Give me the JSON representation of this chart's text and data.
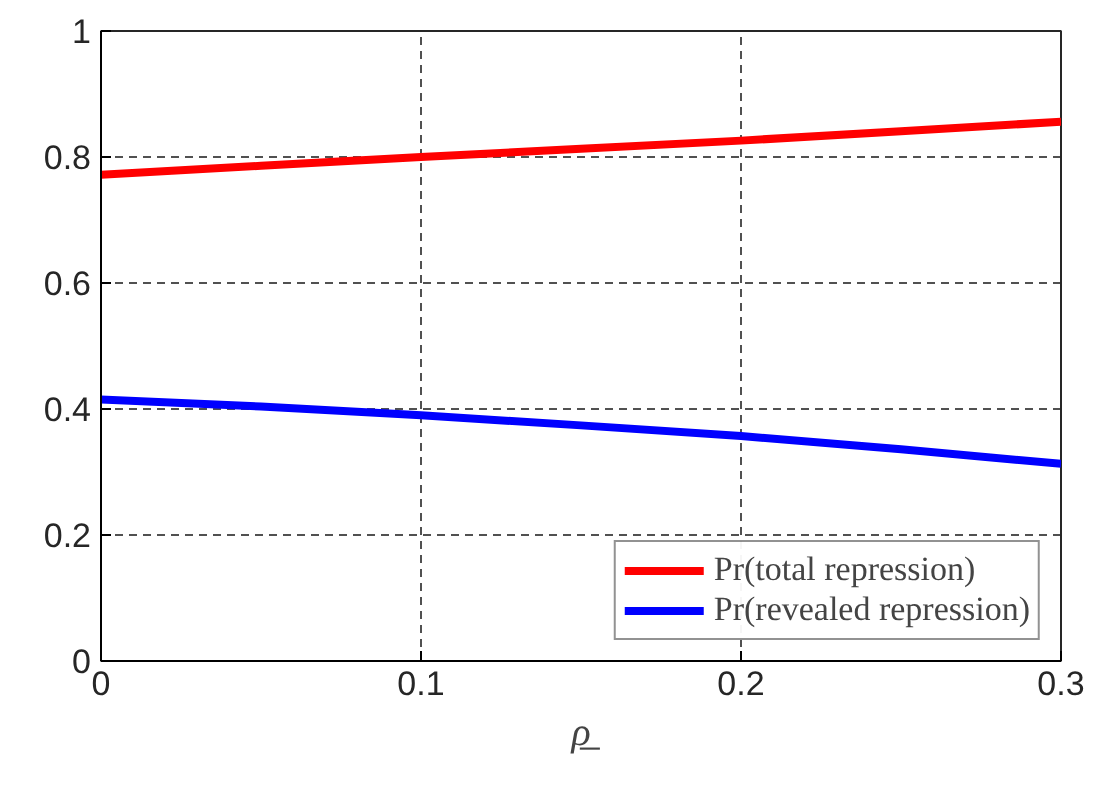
{
  "chart_data": {
    "type": "line",
    "xlabel": "ρ̲",
    "x": [
      0,
      0.05,
      0.1,
      0.15,
      0.2,
      0.25,
      0.3
    ],
    "series": [
      {
        "name": "Pr(total repression)",
        "color": "#ff0000",
        "values": [
          0.772,
          0.786,
          0.8,
          0.813,
          0.826,
          0.841,
          0.856
        ]
      },
      {
        "name": "Pr(revealed repression)",
        "color": "#0000ff",
        "values": [
          0.415,
          0.404,
          0.39,
          0.374,
          0.357,
          0.336,
          0.313
        ]
      }
    ],
    "xlim": [
      0,
      0.3
    ],
    "ylim": [
      0,
      1
    ],
    "xticks": [
      0,
      0.1,
      0.2,
      0.3
    ],
    "yticks": [
      0,
      0.2,
      0.4,
      0.6,
      0.8,
      1
    ],
    "grid": true,
    "legend": "bottom right",
    "line_style": "solid",
    "marker": "none"
  }
}
